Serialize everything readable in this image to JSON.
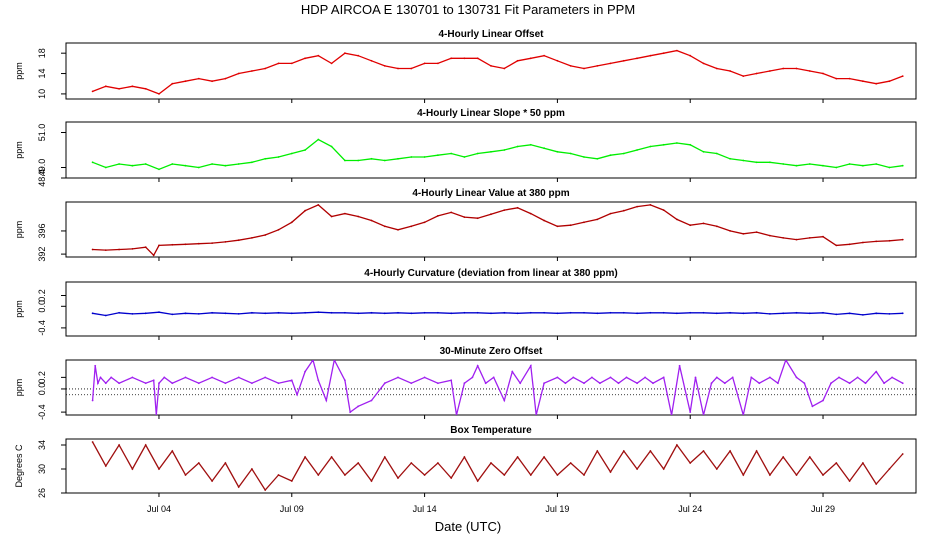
{
  "title": "HDP   AIRCOA E   130701 to 130731   Fit Parameters in PPM",
  "xlabel": "Date (UTC)",
  "colors": {
    "red": "#e00000",
    "green": "#00ee00",
    "darkred": "#b00000",
    "blue": "#0000cc",
    "purple": "#a020f0",
    "brown": "#a01010"
  },
  "chart_data": [
    {
      "type": "line",
      "title": "4-Hourly Linear Offset",
      "ylabel": "ppm",
      "ylim": [
        9,
        20
      ],
      "yticks": [
        10,
        14,
        18
      ],
      "xlim": [
        0.5,
        32.5
      ],
      "xticks": [
        4,
        9,
        14,
        19,
        24,
        29
      ],
      "xticklabels": [
        "Jul 04",
        "Jul 09",
        "Jul 14",
        "Jul 19",
        "Jul 24",
        "Jul 29"
      ],
      "color": "red",
      "series": [
        {
          "name": "offset",
          "x": [
            1.5,
            2,
            2.5,
            3,
            3.5,
            4,
            4.5,
            5,
            5.5,
            6,
            6.5,
            7,
            7.5,
            8,
            8.5,
            9,
            9.5,
            10,
            10.5,
            11,
            11.5,
            12,
            12.5,
            13,
            13.5,
            14,
            14.5,
            15,
            15.5,
            16,
            16.5,
            17,
            17.5,
            18,
            18.5,
            19,
            19.5,
            20,
            20.5,
            21,
            21.5,
            22,
            22.5,
            23,
            23.5,
            24,
            24.5,
            25,
            25.5,
            26,
            26.5,
            27,
            27.5,
            28,
            28.5,
            29,
            29.5,
            30,
            30.5,
            31,
            31.5,
            32
          ],
          "y": [
            10.5,
            11.5,
            11,
            11.5,
            11,
            10,
            12,
            12.5,
            13,
            12.5,
            13,
            14,
            14.5,
            15,
            16,
            16,
            17,
            17.5,
            16,
            18,
            17.5,
            16.5,
            15.5,
            15,
            15,
            16,
            16,
            17,
            17,
            17,
            15.5,
            15,
            16.5,
            17,
            17.5,
            16.5,
            15.5,
            15,
            15.5,
            16,
            16.5,
            17,
            17.5,
            18,
            18.5,
            17.5,
            16,
            15,
            14.5,
            13.5,
            14,
            14.5,
            15,
            15,
            14.5,
            14,
            13,
            13,
            12.5,
            12,
            12.5,
            13.5
          ]
        }
      ]
    },
    {
      "type": "line",
      "title": "4-Hourly Linear Slope * 50 ppm",
      "ylabel": "ppm",
      "ylim": [
        48.4,
        51.6
      ],
      "yticks": [
        48.4,
        49.0,
        51.0
      ],
      "yticklabels": [
        "48.4",
        "49.0",
        "51.0"
      ],
      "xlim": [
        0.5,
        32.5
      ],
      "color": "green",
      "series": [
        {
          "name": "slope",
          "x": [
            1.5,
            2,
            2.5,
            3,
            3.5,
            4,
            4.5,
            5,
            5.5,
            6,
            6.5,
            7,
            7.5,
            8,
            8.5,
            9,
            9.5,
            10,
            10.5,
            11,
            11.5,
            12,
            12.5,
            13,
            13.5,
            14,
            14.5,
            15,
            15.5,
            16,
            16.5,
            17,
            17.5,
            18,
            18.5,
            19,
            19.5,
            20,
            20.5,
            21,
            21.5,
            22,
            22.5,
            23,
            23.5,
            24,
            24.5,
            25,
            25.5,
            26,
            26.5,
            27,
            27.5,
            28,
            28.5,
            29,
            29.5,
            30,
            30.5,
            31,
            31.5,
            32
          ],
          "y": [
            49.3,
            49.0,
            49.2,
            49.1,
            49.2,
            48.9,
            49.2,
            49.1,
            49.0,
            49.2,
            49.1,
            49.2,
            49.3,
            49.5,
            49.6,
            49.8,
            50.0,
            50.6,
            50.2,
            49.4,
            49.4,
            49.5,
            49.4,
            49.5,
            49.6,
            49.6,
            49.7,
            49.8,
            49.6,
            49.8,
            49.9,
            50.0,
            50.2,
            50.3,
            50.1,
            49.9,
            49.8,
            49.6,
            49.5,
            49.7,
            49.8,
            50.0,
            50.2,
            50.3,
            50.4,
            50.3,
            49.9,
            49.8,
            49.5,
            49.4,
            49.3,
            49.3,
            49.2,
            49.1,
            49.2,
            49.1,
            49.0,
            49.2,
            49.1,
            49.2,
            49.0,
            49.1
          ]
        }
      ]
    },
    {
      "type": "line",
      "title": "4-Hourly Linear Value at 380 ppm",
      "ylabel": "ppm",
      "ylim": [
        391.5,
        401
      ],
      "yticks": [
        392,
        396
      ],
      "xlim": [
        0.5,
        32.5
      ],
      "color": "darkred",
      "series": [
        {
          "name": "value",
          "x": [
            1.5,
            2,
            2.5,
            3,
            3.5,
            3.8,
            4,
            4.5,
            5,
            5.5,
            6,
            6.5,
            7,
            7.5,
            8,
            8.5,
            9,
            9.5,
            10,
            10.5,
            11,
            11.5,
            12,
            12.5,
            13,
            13.5,
            14,
            14.5,
            15,
            15.5,
            16,
            16.5,
            17,
            17.5,
            18,
            18.5,
            19,
            19.5,
            20,
            20.5,
            21,
            21.5,
            22,
            22.5,
            23,
            23.5,
            24,
            24.5,
            25,
            25.5,
            26,
            26.5,
            27,
            27.5,
            28,
            28.5,
            29,
            29.5,
            30,
            30.5,
            31,
            31.5,
            32
          ],
          "y": [
            392.8,
            392.7,
            392.8,
            392.9,
            393.2,
            391.8,
            393.5,
            393.6,
            393.7,
            393.8,
            393.9,
            394.1,
            394.4,
            394.8,
            395.3,
            396.2,
            397.5,
            399.5,
            400.5,
            398.5,
            399.0,
            398.5,
            397.8,
            396.8,
            396.2,
            396.8,
            397.5,
            398.6,
            399.2,
            398.4,
            398.2,
            398.9,
            399.6,
            400.0,
            399.0,
            397.8,
            396.8,
            397.0,
            397.5,
            398.0,
            399.0,
            399.5,
            400.2,
            400.5,
            399.6,
            398.0,
            397.0,
            397.3,
            396.8,
            396.0,
            395.5,
            395.8,
            395.2,
            394.8,
            394.5,
            394.8,
            395.0,
            393.5,
            393.7,
            394.0,
            394.2,
            394.3,
            394.5
          ]
        }
      ]
    },
    {
      "type": "line",
      "title": "4-Hourly Curvature (deviation from linear at 380 ppm)",
      "ylabel": "ppm",
      "ylim": [
        -0.55,
        0.45
      ],
      "yticks": [
        -0.4,
        0.0,
        0.2
      ],
      "yticklabels": [
        "-0.4",
        "0.0",
        "0.2"
      ],
      "xlim": [
        0.5,
        32.5
      ],
      "color": "blue",
      "series": [
        {
          "name": "curvature",
          "x": [
            1.5,
            2,
            2.5,
            3,
            3.5,
            4,
            4.5,
            5,
            5.5,
            6,
            6.5,
            7,
            7.5,
            8,
            8.5,
            9,
            9.5,
            10,
            10.5,
            11,
            11.5,
            12,
            12.5,
            13,
            13.5,
            14,
            14.5,
            15,
            15.5,
            16,
            16.5,
            17,
            17.5,
            18,
            18.5,
            19,
            19.5,
            20,
            20.5,
            21,
            21.5,
            22,
            22.5,
            23,
            23.5,
            24,
            24.5,
            25,
            25.5,
            26,
            26.5,
            27,
            27.5,
            28,
            28.5,
            29,
            29.5,
            30,
            30.5,
            31,
            31.5,
            32
          ],
          "y": [
            -0.13,
            -0.17,
            -0.12,
            -0.14,
            -0.13,
            -0.11,
            -0.15,
            -0.13,
            -0.14,
            -0.12,
            -0.13,
            -0.14,
            -0.12,
            -0.13,
            -0.12,
            -0.13,
            -0.12,
            -0.11,
            -0.12,
            -0.12,
            -0.13,
            -0.12,
            -0.13,
            -0.12,
            -0.13,
            -0.12,
            -0.12,
            -0.13,
            -0.12,
            -0.12,
            -0.13,
            -0.12,
            -0.13,
            -0.12,
            -0.12,
            -0.13,
            -0.12,
            -0.12,
            -0.13,
            -0.12,
            -0.12,
            -0.13,
            -0.12,
            -0.12,
            -0.13,
            -0.12,
            -0.12,
            -0.13,
            -0.12,
            -0.13,
            -0.12,
            -0.14,
            -0.13,
            -0.12,
            -0.13,
            -0.12,
            -0.15,
            -0.13,
            -0.16,
            -0.13,
            -0.14,
            -0.13
          ]
        }
      ]
    },
    {
      "type": "line",
      "title": "30-Minute Zero Offset",
      "ylabel": "ppm",
      "ylim": [
        -0.45,
        0.5
      ],
      "yticks": [
        -0.4,
        0.0,
        0.2
      ],
      "yticklabels": [
        "-0.4",
        "0.0",
        "0.2"
      ],
      "xlim": [
        0.5,
        32.5
      ],
      "color": "purple",
      "series": [
        {
          "name": "zero_offset",
          "x": [
            1.5,
            1.6,
            1.7,
            1.8,
            2,
            2.2,
            2.5,
            3,
            3.5,
            3.8,
            3.9,
            4,
            4.2,
            4.5,
            5,
            5.5,
            6,
            6.5,
            7,
            7.5,
            8,
            8.5,
            9,
            9.2,
            9.5,
            9.8,
            10,
            10.3,
            10.6,
            11,
            11.2,
            11.5,
            12,
            12.5,
            13,
            13.5,
            14,
            14.5,
            15,
            15.2,
            15.5,
            15.8,
            16,
            16.3,
            16.6,
            17,
            17.3,
            17.6,
            18,
            18.2,
            18.5,
            19,
            19.3,
            19.6,
            20,
            20.3,
            20.6,
            21,
            21.3,
            21.6,
            22,
            22.3,
            22.6,
            23,
            23.3,
            23.6,
            24,
            24.2,
            24.5,
            24.8,
            25,
            25.3,
            25.6,
            26,
            26.3,
            26.6,
            27,
            27.3,
            27.6,
            28,
            28.3,
            28.6,
            29,
            29.3,
            29.6,
            30,
            30.3,
            30.6,
            31,
            31.3,
            31.6,
            32
          ],
          "y": [
            -0.2,
            0.4,
            0.1,
            0.2,
            0.1,
            0.2,
            0.1,
            0.2,
            0.1,
            0.15,
            -0.45,
            0.1,
            0.2,
            0.1,
            0.2,
            0.1,
            0.2,
            0.1,
            0.2,
            0.1,
            0.2,
            0.1,
            0.15,
            -0.1,
            0.3,
            0.5,
            0.15,
            -0.2,
            0.5,
            0.15,
            -0.4,
            -0.3,
            -0.2,
            0.1,
            0.2,
            0.1,
            0.2,
            0.1,
            0.15,
            -0.45,
            0.1,
            0.2,
            0.4,
            0.1,
            0.2,
            -0.2,
            0.3,
            0.1,
            0.4,
            -0.45,
            0.1,
            0.2,
            0.1,
            0.2,
            0.1,
            0.2,
            0.1,
            0.2,
            0.1,
            0.2,
            0.1,
            0.2,
            0.1,
            0.2,
            -0.45,
            0.4,
            -0.4,
            0.2,
            -0.45,
            0.1,
            0.2,
            0.1,
            0.2,
            -0.45,
            0.2,
            0.1,
            0.2,
            0.1,
            0.5,
            0.2,
            0.1,
            -0.3,
            -0.2,
            0.1,
            0.2,
            0.1,
            0.2,
            0.1,
            0.3,
            0.1,
            0.2,
            0.1
          ]
        }
      ]
    },
    {
      "type": "line",
      "title": "Box Temperature",
      "ylabel": "Degrees C",
      "ylim": [
        26,
        35
      ],
      "yticks": [
        26,
        30,
        34
      ],
      "xlim": [
        0.5,
        32.5
      ],
      "color": "brown",
      "series": [
        {
          "name": "box_temp",
          "x": [
            1.5,
            2,
            2.5,
            3,
            3.5,
            4,
            4.5,
            5,
            5.5,
            6,
            6.5,
            7,
            7.5,
            8,
            8.5,
            9,
            9.5,
            10,
            10.5,
            11,
            11.5,
            12,
            12.5,
            13,
            13.5,
            14,
            14.5,
            15,
            15.5,
            16,
            16.5,
            17,
            17.5,
            18,
            18.5,
            19,
            19.5,
            20,
            20.5,
            21,
            21.5,
            22,
            22.5,
            23,
            23.5,
            24,
            24.5,
            25,
            25.5,
            26,
            26.5,
            27,
            27.5,
            28,
            28.5,
            29,
            29.5,
            30,
            30.5,
            31,
            31.5,
            32
          ],
          "y": [
            34.5,
            30.5,
            34,
            30,
            34,
            30,
            33,
            29,
            31,
            28,
            31,
            27,
            30,
            26.5,
            29,
            28,
            32,
            29,
            32,
            29,
            31,
            28,
            32,
            28.5,
            31,
            29,
            31,
            28.5,
            32,
            28,
            31,
            29,
            32,
            29,
            32,
            29,
            31,
            29,
            33,
            29.5,
            33,
            30,
            33,
            30,
            34,
            31,
            33,
            30,
            33,
            29,
            33,
            29,
            32,
            29,
            32,
            29,
            31,
            28,
            31,
            27.5,
            30,
            32.5
          ]
        }
      ]
    }
  ]
}
